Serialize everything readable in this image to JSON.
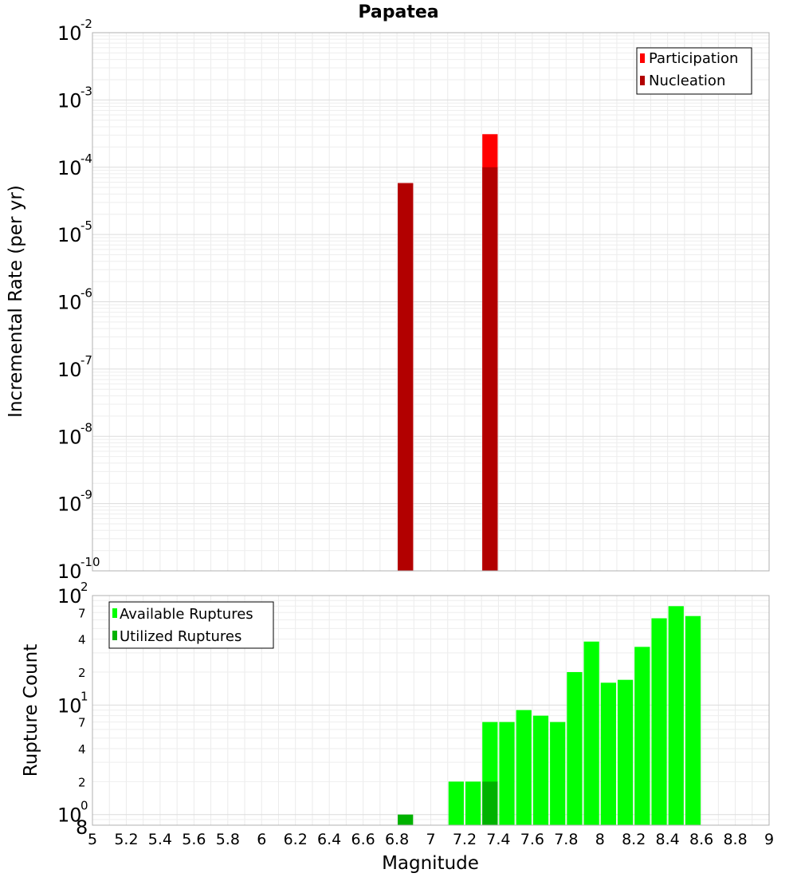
{
  "chart_data": [
    {
      "type": "bar",
      "title": "Papatea",
      "xlabel": "",
      "ylabel": "Incremental Rate (per yr)",
      "xlim": [
        5,
        9
      ],
      "ylim": [
        1e-10,
        0.01
      ],
      "yscale": "log",
      "grid": true,
      "legend_position": "top-right",
      "bar_width": 0.1,
      "series": [
        {
          "name": "Participation",
          "color": "#ff0000",
          "x": [
            6.85,
            7.35
          ],
          "values": [
            5.8e-05,
            0.00031
          ]
        },
        {
          "name": "Nucleation",
          "color": "#b20000",
          "x": [
            6.85,
            7.35
          ],
          "values": [
            5.8e-05,
            0.0001
          ]
        }
      ],
      "y_major_ticks": [
        {
          "value": 0.01,
          "base": "10",
          "exp": "-2"
        },
        {
          "value": 0.001,
          "base": "10",
          "exp": "-3"
        },
        {
          "value": 0.0001,
          "base": "10",
          "exp": "-4"
        },
        {
          "value": 1e-05,
          "base": "10",
          "exp": "-5"
        },
        {
          "value": 1e-06,
          "base": "10",
          "exp": "-6"
        },
        {
          "value": 1e-07,
          "base": "10",
          "exp": "-7"
        },
        {
          "value": 1e-08,
          "base": "10",
          "exp": "-8"
        },
        {
          "value": 1e-09,
          "base": "10",
          "exp": "-9"
        },
        {
          "value": 1e-10,
          "base": "10",
          "exp": "-10"
        }
      ]
    },
    {
      "type": "bar",
      "xlabel": "Magnitude",
      "ylabel": "Rupture Count",
      "xlim": [
        5,
        9
      ],
      "ylim": [
        0.8,
        100
      ],
      "yscale": "log",
      "grid": true,
      "legend_position": "top-left",
      "bar_width": 0.1,
      "series": [
        {
          "name": "Available Ruptures",
          "color": "#00ff00",
          "x": [
            7.15,
            7.25,
            7.35,
            7.45,
            7.55,
            7.65,
            7.75,
            7.85,
            7.95,
            8.05,
            8.15,
            8.25,
            8.35,
            8.45,
            8.55
          ],
          "values": [
            2,
            2,
            7,
            7,
            9,
            8,
            7,
            20,
            38,
            16,
            17,
            34,
            62,
            80,
            65
          ]
        },
        {
          "name": "Utilized Ruptures",
          "color": "#00b200",
          "x": [
            6.85,
            7.35
          ],
          "values": [
            1,
            2
          ]
        }
      ],
      "y_major_ticks": [
        {
          "value": 100,
          "base": "10",
          "exp": "2"
        },
        {
          "value": 10,
          "base": "10",
          "exp": "1"
        },
        {
          "value": 1,
          "base": "10",
          "exp": "0"
        }
      ],
      "y_minor_ticks": [
        {
          "value": 70,
          "label": "7"
        },
        {
          "value": 40,
          "label": "4"
        },
        {
          "value": 20,
          "label": "2"
        },
        {
          "value": 7,
          "label": "7"
        },
        {
          "value": 4,
          "label": "4"
        },
        {
          "value": 2,
          "label": "2"
        },
        {
          "value": 0.8,
          "label": "8"
        }
      ],
      "x_ticks": [
        "5",
        "5.2",
        "5.4",
        "5.6",
        "5.8",
        "6",
        "6.2",
        "6.4",
        "6.6",
        "6.8",
        "7",
        "7.2",
        "7.4",
        "7.6",
        "7.8",
        "8",
        "8.2",
        "8.4",
        "8.6",
        "8.8",
        "9"
      ]
    }
  ]
}
